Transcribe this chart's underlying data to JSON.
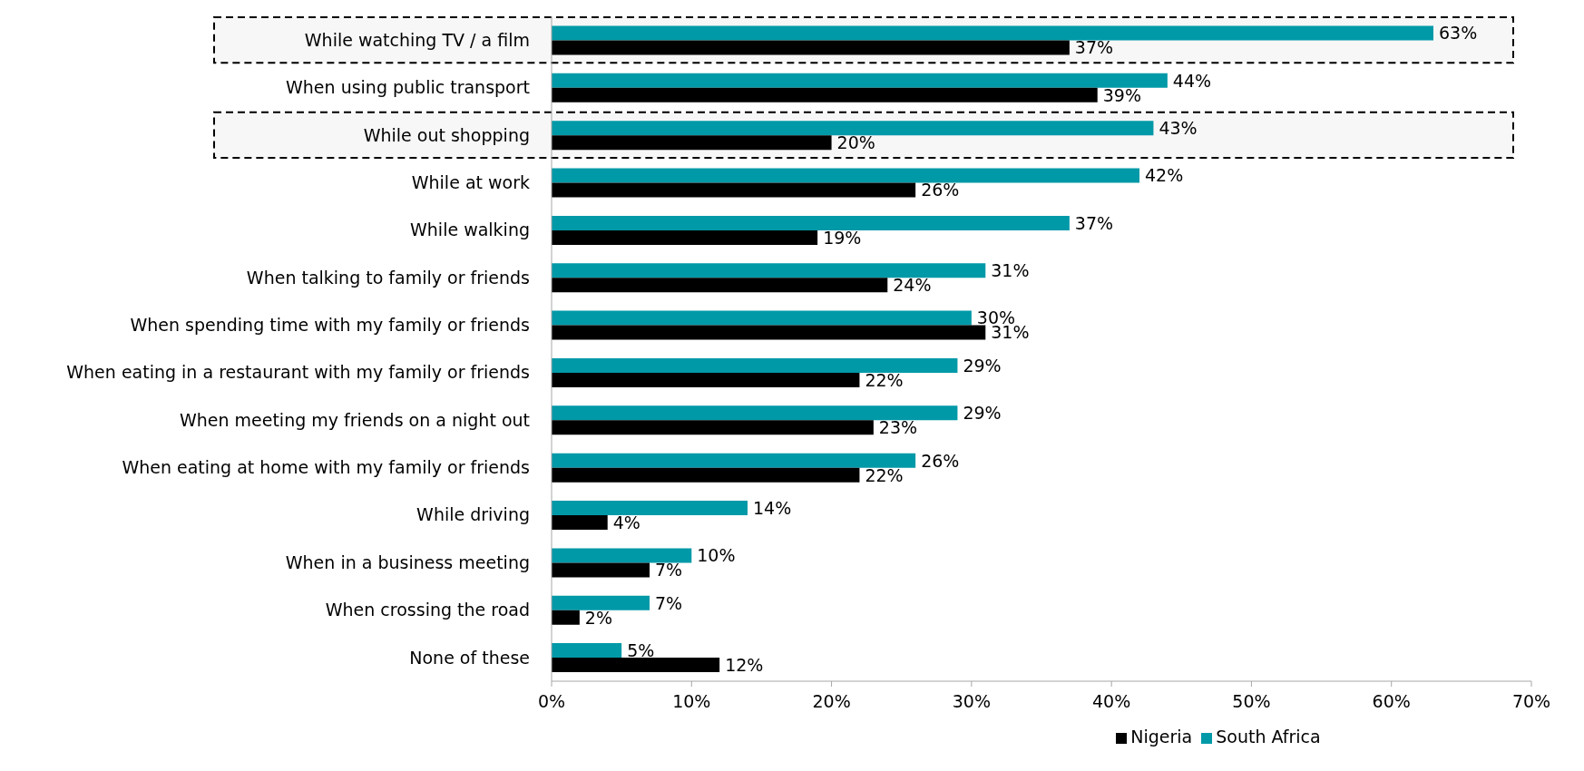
{
  "chart_data": {
    "type": "bar",
    "orientation": "horizontal",
    "categories": [
      "While watching TV / a film",
      "When using public transport",
      "While out shopping",
      "While at work",
      "While walking",
      "When talking to family or friends",
      "When spending time with my family or friends",
      "When eating in a restaurant  with my family or friends",
      "When meeting my friends on a night out",
      "When eating at home with my family or friends",
      "While driving",
      "When in a business meeting",
      "When crossing the road",
      "None of these"
    ],
    "series": [
      {
        "name": "South Africa",
        "color": "#0099a8",
        "values": [
          63,
          44,
          43,
          42,
          37,
          31,
          30,
          29,
          29,
          26,
          14,
          10,
          7,
          5
        ],
        "value_labels": [
          "63%",
          "44%",
          "43%",
          "42%",
          "37%",
          "31%",
          "30%",
          "29%",
          "29%",
          "26%",
          "14%",
          "10%",
          "7%",
          "5%"
        ]
      },
      {
        "name": "Nigeria",
        "color": "#000000",
        "values": [
          37,
          39,
          20,
          26,
          19,
          24,
          31,
          22,
          23,
          22,
          4,
          7,
          2,
          12
        ],
        "value_labels": [
          "37%",
          "39%",
          "20%",
          "26%",
          "19%",
          "24%",
          "31%",
          "22%",
          "23%",
          "22%",
          "4%",
          "7%",
          "2%",
          "12%"
        ]
      }
    ],
    "xlim": [
      0,
      70
    ],
    "xticks": [
      {
        "value": 0,
        "label": "0%"
      },
      {
        "value": 10,
        "label": "10%"
      },
      {
        "value": 20,
        "label": "20%"
      },
      {
        "value": 30,
        "label": "30%"
      },
      {
        "value": 40,
        "label": "40%"
      },
      {
        "value": 50,
        "label": "50%"
      },
      {
        "value": 60,
        "label": "60%"
      },
      {
        "value": 70,
        "label": "70%"
      }
    ],
    "bands": [
      {
        "axis": "y",
        "from": "While watching TV / a film",
        "to": "While watching TV / a film"
      },
      {
        "axis": "y",
        "from": "While out shopping",
        "to": "While out shopping"
      }
    ],
    "grid": false,
    "legend": "bottom"
  }
}
